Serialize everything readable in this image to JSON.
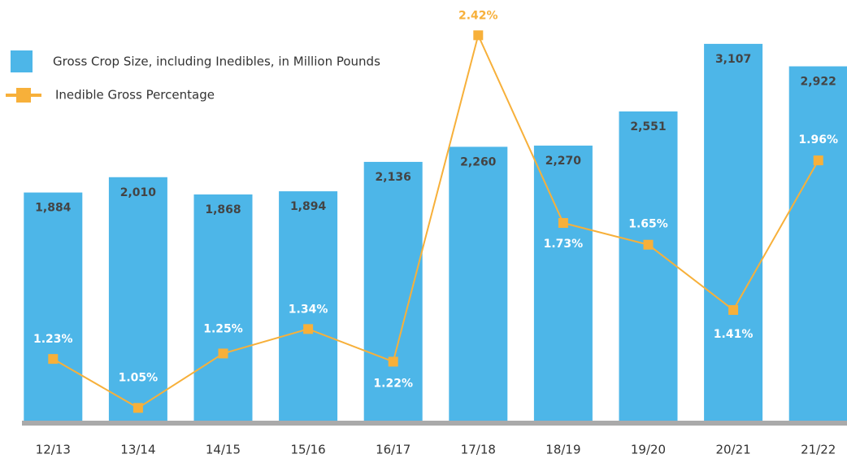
{
  "chart_data": {
    "type": "bar_line",
    "categories": [
      "12/13",
      "13/14",
      "14/15",
      "15/16",
      "16/17",
      "17/18",
      "18/19",
      "19/20",
      "20/21",
      "21/22"
    ],
    "series": [
      {
        "name": "Gross Crop Size, including Inedibles, in Million Pounds",
        "type": "bar",
        "color": "#4db6e8",
        "values": [
          1884,
          2010,
          1868,
          1894,
          2136,
          2260,
          2270,
          2551,
          3107,
          2922
        ],
        "value_labels": [
          "1,884",
          "2,010",
          "1,868",
          "1,894",
          "2,136",
          "2,260",
          "2,270",
          "2,551",
          "3,107",
          "2,922"
        ]
      },
      {
        "name": "Inedible Gross Percentage",
        "type": "line",
        "axis": "y2",
        "color": "#f7b03a",
        "values": [
          1.23,
          1.05,
          1.25,
          1.34,
          1.22,
          2.42,
          1.73,
          1.65,
          1.41,
          1.96
        ],
        "value_labels": [
          "1.23%",
          "1.05%",
          "1.25%",
          "1.34%",
          "1.22%",
          "2.42%",
          "1.73%",
          "1.65%",
          "1.41%",
          "1.96%"
        ]
      }
    ],
    "ylim": [
      0,
      3200
    ],
    "y2lim": [
      1.0,
      2.43
    ],
    "legend": "top-left"
  }
}
